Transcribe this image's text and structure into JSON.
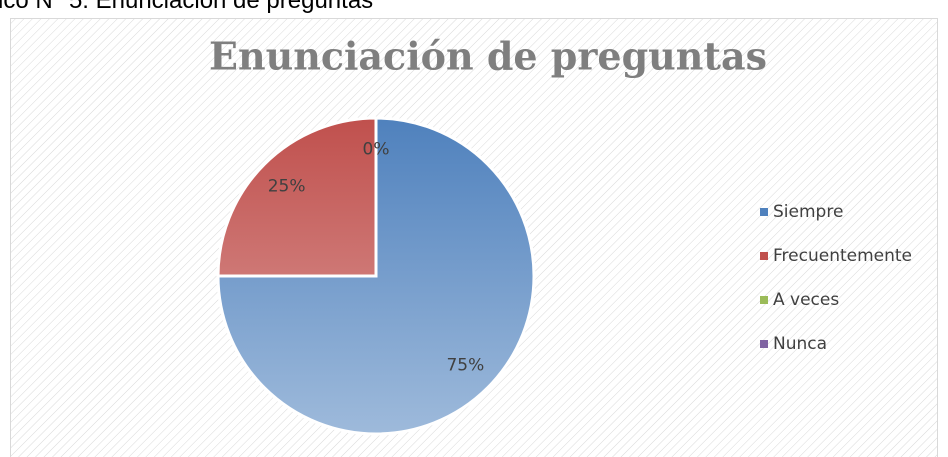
{
  "caption": "ico N° 5: Enunciación de preguntas",
  "chart_data": {
    "type": "pie",
    "title": "Enunciación de preguntas",
    "categories": [
      "Siempre",
      "Frecuentemente",
      "A veces",
      "Nunca"
    ],
    "values": [
      75,
      25,
      0,
      0
    ],
    "value_labels": [
      "75%",
      "25%",
      "0%",
      "0%"
    ],
    "colors": [
      "#4f81bd",
      "#c0504d",
      "#9bbb59",
      "#8064a2"
    ],
    "legend": "right"
  }
}
